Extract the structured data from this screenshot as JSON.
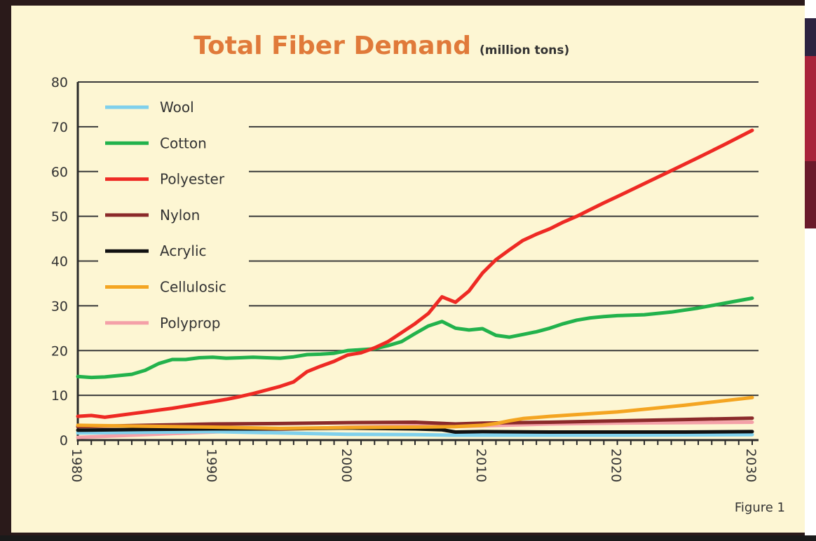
{
  "chart_data": {
    "type": "line",
    "title": "Total Fiber Demand",
    "subtitle": "(million tons)",
    "xlabel": "",
    "ylabel": "",
    "xlim": [
      1980,
      2030
    ],
    "ylim": [
      0,
      80
    ],
    "x_ticks": [
      "1980",
      "1990",
      "2000",
      "2010",
      "2020",
      "2030"
    ],
    "y_ticks": [
      "0",
      "10",
      "20",
      "30",
      "40",
      "50",
      "60",
      "70",
      "80"
    ],
    "grid": "horizontal",
    "legend_position": "top-left",
    "figure_note": "Figure 1",
    "series": [
      {
        "name": "Wool",
        "color": "#7fd0ec",
        "points": [
          [
            1980,
            1.6
          ],
          [
            1990,
            1.9
          ],
          [
            2000,
            1.3
          ],
          [
            2005,
            1.2
          ],
          [
            2008,
            1.1
          ],
          [
            2010,
            1.1
          ],
          [
            2020,
            1.1
          ],
          [
            2030,
            1.2
          ]
        ]
      },
      {
        "name": "Cotton",
        "color": "#22b24c",
        "points": [
          [
            1980,
            14.2
          ],
          [
            1981,
            14.0
          ],
          [
            1982,
            14.1
          ],
          [
            1983,
            14.4
          ],
          [
            1984,
            14.7
          ],
          [
            1985,
            15.6
          ],
          [
            1986,
            17.1
          ],
          [
            1987,
            18.0
          ],
          [
            1988,
            18.0
          ],
          [
            1989,
            18.4
          ],
          [
            1990,
            18.5
          ],
          [
            1991,
            18.3
          ],
          [
            1992,
            18.4
          ],
          [
            1993,
            18.5
          ],
          [
            1994,
            18.4
          ],
          [
            1995,
            18.3
          ],
          [
            1996,
            18.6
          ],
          [
            1997,
            19.1
          ],
          [
            1998,
            19.2
          ],
          [
            1999,
            19.4
          ],
          [
            2000,
            20.0
          ],
          [
            2001,
            20.2
          ],
          [
            2002,
            20.4
          ],
          [
            2003,
            21.1
          ],
          [
            2004,
            22.0
          ],
          [
            2005,
            23.8
          ],
          [
            2006,
            25.5
          ],
          [
            2007,
            26.5
          ],
          [
            2008,
            25.0
          ],
          [
            2009,
            24.6
          ],
          [
            2010,
            24.9
          ],
          [
            2011,
            23.4
          ],
          [
            2012,
            23.0
          ],
          [
            2013,
            23.6
          ],
          [
            2014,
            24.2
          ],
          [
            2015,
            25.0
          ],
          [
            2016,
            26.0
          ],
          [
            2017,
            26.8
          ],
          [
            2018,
            27.3
          ],
          [
            2019,
            27.6
          ],
          [
            2020,
            27.8
          ],
          [
            2022,
            28.0
          ],
          [
            2024,
            28.6
          ],
          [
            2026,
            29.5
          ],
          [
            2028,
            30.6
          ],
          [
            2030,
            31.7
          ]
        ]
      },
      {
        "name": "Polyester",
        "color": "#ee2a24",
        "points": [
          [
            1980,
            5.3
          ],
          [
            1981,
            5.5
          ],
          [
            1982,
            5.1
          ],
          [
            1983,
            5.5
          ],
          [
            1984,
            5.9
          ],
          [
            1985,
            6.3
          ],
          [
            1986,
            6.7
          ],
          [
            1987,
            7.1
          ],
          [
            1988,
            7.6
          ],
          [
            1989,
            8.1
          ],
          [
            1990,
            8.6
          ],
          [
            1991,
            9.1
          ],
          [
            1992,
            9.7
          ],
          [
            1993,
            10.4
          ],
          [
            1994,
            11.2
          ],
          [
            1995,
            12.0
          ],
          [
            1996,
            13.0
          ],
          [
            1997,
            15.3
          ],
          [
            1998,
            16.5
          ],
          [
            1999,
            17.6
          ],
          [
            2000,
            19.0
          ],
          [
            2001,
            19.5
          ],
          [
            2002,
            20.6
          ],
          [
            2003,
            22.0
          ],
          [
            2004,
            24.0
          ],
          [
            2005,
            26.0
          ],
          [
            2006,
            28.3
          ],
          [
            2007,
            32.0
          ],
          [
            2008,
            30.8
          ],
          [
            2009,
            33.3
          ],
          [
            2010,
            37.3
          ],
          [
            2011,
            40.3
          ],
          [
            2012,
            42.5
          ],
          [
            2013,
            44.6
          ],
          [
            2014,
            46.0
          ],
          [
            2015,
            47.2
          ],
          [
            2016,
            48.7
          ],
          [
            2017,
            50.0
          ],
          [
            2018,
            51.5
          ],
          [
            2019,
            53.0
          ],
          [
            2020,
            54.4
          ],
          [
            2022,
            57.3
          ],
          [
            2024,
            60.2
          ],
          [
            2026,
            63.1
          ],
          [
            2028,
            66.1
          ],
          [
            2030,
            69.2
          ]
        ]
      },
      {
        "name": "Nylon",
        "color": "#8b2a2a",
        "points": [
          [
            1980,
            3.0
          ],
          [
            1985,
            3.3
          ],
          [
            1990,
            3.6
          ],
          [
            1995,
            3.7
          ],
          [
            2000,
            3.9
          ],
          [
            2005,
            4.0
          ],
          [
            2008,
            3.6
          ],
          [
            2010,
            3.8
          ],
          [
            2015,
            4.0
          ],
          [
            2020,
            4.3
          ],
          [
            2025,
            4.6
          ],
          [
            2030,
            4.9
          ]
        ]
      },
      {
        "name": "Acrylic",
        "color": "#111111",
        "points": [
          [
            1980,
            2.2
          ],
          [
            1985,
            2.4
          ],
          [
            1990,
            2.5
          ],
          [
            1995,
            2.5
          ],
          [
            2000,
            2.7
          ],
          [
            2005,
            2.5
          ],
          [
            2007,
            2.3
          ],
          [
            2008,
            1.8
          ],
          [
            2010,
            1.9
          ],
          [
            2015,
            1.8
          ],
          [
            2020,
            1.8
          ],
          [
            2025,
            1.8
          ],
          [
            2030,
            1.9
          ]
        ]
      },
      {
        "name": "Cellulosic",
        "color": "#f4a522",
        "points": [
          [
            1980,
            3.3
          ],
          [
            1985,
            3.1
          ],
          [
            1990,
            2.9
          ],
          [
            1995,
            2.6
          ],
          [
            2000,
            2.8
          ],
          [
            2005,
            2.9
          ],
          [
            2008,
            3.0
          ],
          [
            2010,
            3.3
          ],
          [
            2011,
            3.7
          ],
          [
            2012,
            4.3
          ],
          [
            2013,
            4.8
          ],
          [
            2015,
            5.3
          ],
          [
            2020,
            6.3
          ],
          [
            2025,
            7.8
          ],
          [
            2030,
            9.5
          ]
        ]
      },
      {
        "name": "Polyprop",
        "color": "#f4a0a8",
        "points": [
          [
            1980,
            0.6
          ],
          [
            1985,
            1.2
          ],
          [
            1990,
            1.8
          ],
          [
            1995,
            2.4
          ],
          [
            2000,
            2.9
          ],
          [
            2005,
            3.2
          ],
          [
            2008,
            3.0
          ],
          [
            2010,
            3.2
          ],
          [
            2015,
            3.6
          ],
          [
            2020,
            3.8
          ],
          [
            2025,
            3.9
          ],
          [
            2030,
            4.0
          ]
        ]
      }
    ]
  },
  "right_strip_colors": [
    "#8a1a2a",
    "#b02a3a",
    "#4a2a5a",
    "#ffffff"
  ]
}
